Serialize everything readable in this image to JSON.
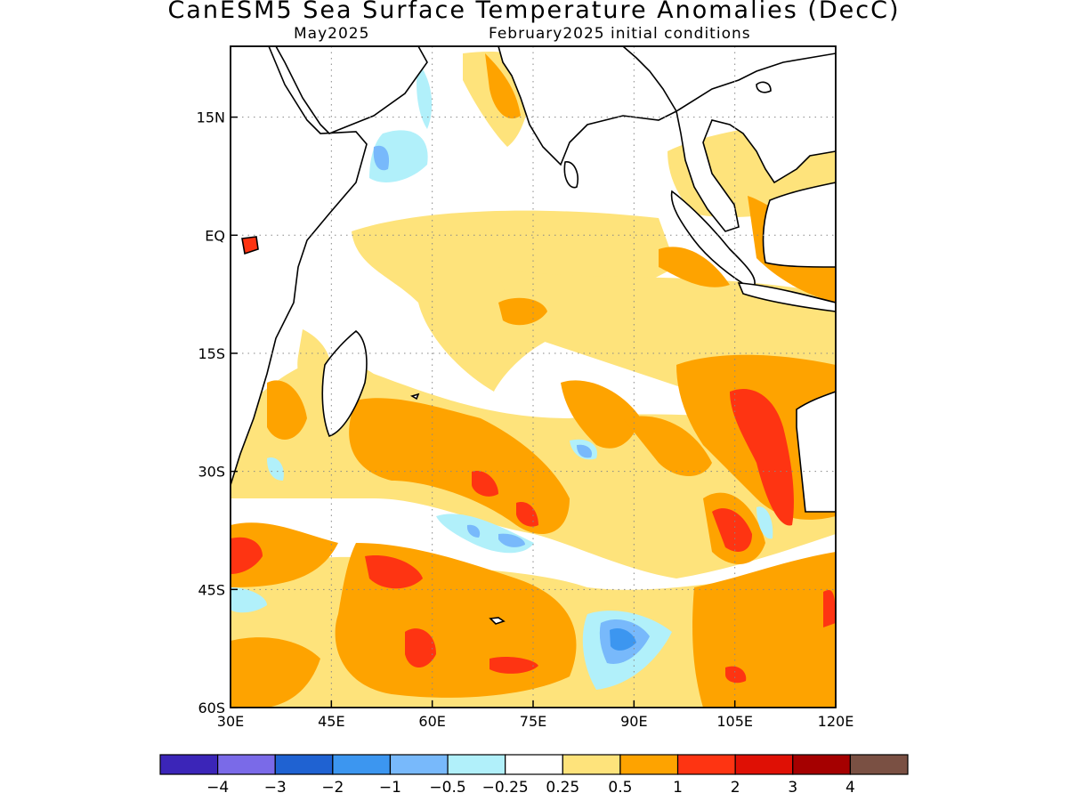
{
  "title": "CanESM5 Sea Surface Temperature Anomalies (DecC)",
  "subtitle_left": "May2025",
  "subtitle_right": "February2025 initial conditions",
  "map": {
    "lon_range": [
      30,
      120
    ],
    "lat_range": [
      -60,
      24
    ],
    "lon_ticks": [
      {
        "value": 30,
        "label": "30E"
      },
      {
        "value": 45,
        "label": "45E"
      },
      {
        "value": 60,
        "label": "60E"
      },
      {
        "value": 75,
        "label": "75E"
      },
      {
        "value": 90,
        "label": "90E"
      },
      {
        "value": 105,
        "label": "105E"
      },
      {
        "value": 120,
        "label": "120E"
      }
    ],
    "lat_ticks": [
      {
        "value": 15,
        "label": "15N"
      },
      {
        "value": 0,
        "label": "EQ"
      },
      {
        "value": -15,
        "label": "15S"
      },
      {
        "value": -30,
        "label": "30S"
      },
      {
        "value": -45,
        "label": "45S"
      },
      {
        "value": -60,
        "label": "60S"
      }
    ],
    "grid": true
  },
  "colorbar": {
    "colors": [
      "#3b25b8",
      "#7a6ae8",
      "#1f62d2",
      "#3c96f0",
      "#78b9fb",
      "#b1f0fa",
      "#ffffff",
      "#fee37b",
      "#fea300",
      "#fe3412",
      "#df1005",
      "#a50000",
      "#7a5043"
    ],
    "labels": [
      "−4",
      "−3",
      "−2",
      "−1",
      "−0.5",
      "−0.25",
      "0.25",
      "0.5",
      "1",
      "2",
      "3",
      "4"
    ]
  }
}
